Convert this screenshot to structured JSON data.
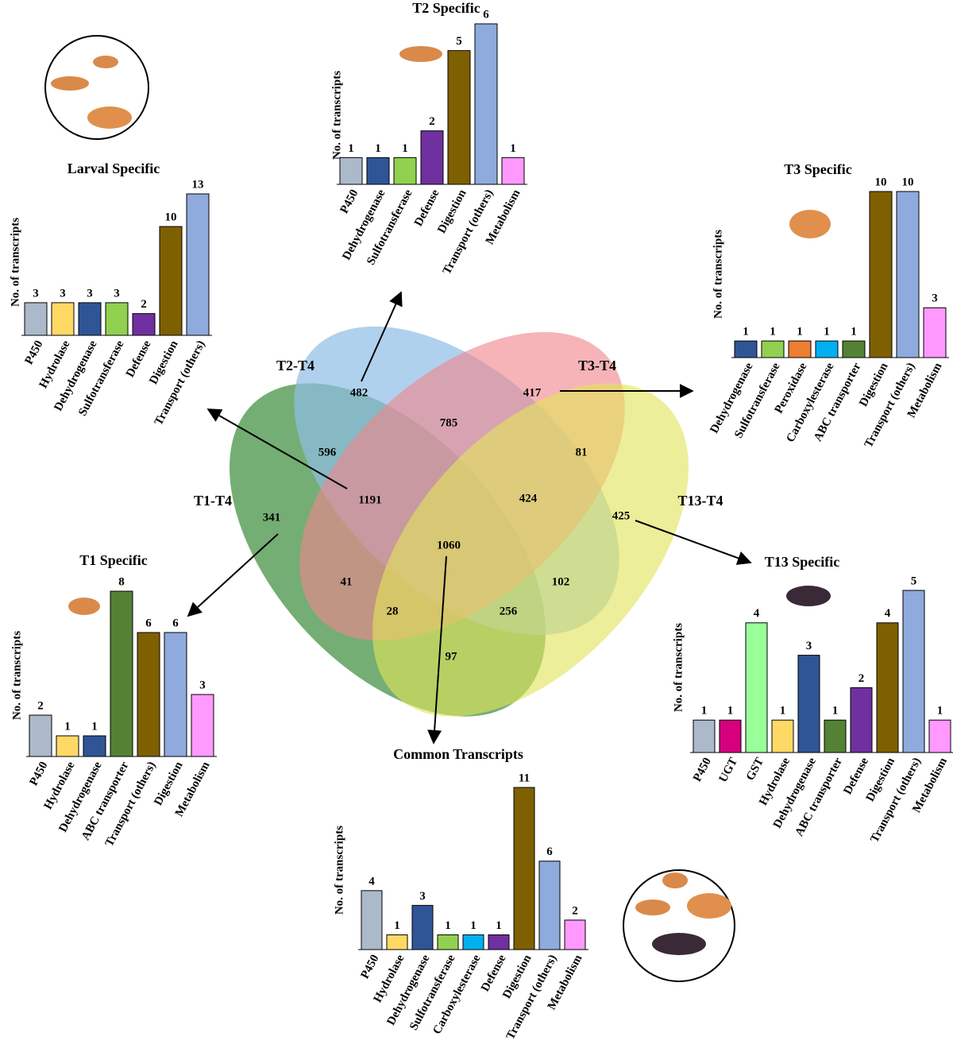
{
  "chart_data": [
    {
      "type": "venn",
      "sets": [
        "T1-T4",
        "T2-T4",
        "T3-T4",
        "T13-T4"
      ],
      "regions": [
        341,
        482,
        417,
        425,
        596,
        785,
        81,
        1191,
        424,
        1060,
        41,
        102,
        28,
        256,
        97
      ]
    },
    {
      "type": "bar",
      "title": "Larval Specific",
      "ylabel": "No. of transcripts",
      "categories": [
        "P450",
        "Hydrolase",
        "Dehydrogenase",
        "Sulfotransferase",
        "Defense",
        "Digestion",
        "Transport (others)"
      ],
      "values": [
        3,
        3,
        3,
        3,
        2,
        10,
        13
      ],
      "colors": [
        "#acb9ca",
        "#ffd966",
        "#2f5597",
        "#92d050",
        "#7030a0",
        "#7f6000",
        "#8faadc"
      ]
    },
    {
      "type": "bar",
      "title": "T2 Specific",
      "ylabel": "No. of transcripts",
      "categories": [
        "P450",
        "Dehydrogenase",
        "Sulfotransferase",
        "Defense",
        "Digestion",
        "Transport (others)",
        "Metabolism"
      ],
      "values": [
        1,
        1,
        1,
        2,
        5,
        6,
        1
      ],
      "colors": [
        "#acb9ca",
        "#2f5597",
        "#92d050",
        "#7030a0",
        "#7f6000",
        "#8faadc",
        "#ff99ff"
      ]
    },
    {
      "type": "bar",
      "title": "T3 Specific",
      "ylabel": "No. of transcripts",
      "categories": [
        "Dehydrogenase",
        "Sulfotransferase",
        "Peroxidase",
        "Carboxylesterase",
        "ABC transporter",
        "Digestion",
        "Transport (others)",
        "Metabolism"
      ],
      "values": [
        1,
        1,
        1,
        1,
        1,
        10,
        10,
        3
      ],
      "colors": [
        "#2f5597",
        "#92d050",
        "#ed7d31",
        "#00b0f0",
        "#548235",
        "#7f6000",
        "#8faadc",
        "#ff99ff"
      ]
    },
    {
      "type": "bar",
      "title": "T1 Specific",
      "ylabel": "No. of transcripts",
      "categories": [
        "P450",
        "Hydrolase",
        "Dehydrogenase",
        "ABC transporter",
        "Transport (others)",
        "Digestion",
        "Metabolism"
      ],
      "values": [
        2,
        1,
        1,
        8,
        6,
        6,
        3
      ],
      "colors": [
        "#acb9ca",
        "#ffd966",
        "#2f5597",
        "#548235",
        "#7f6000",
        "#8faadc",
        "#ff99ff"
      ]
    },
    {
      "type": "bar",
      "title": "T13 Specific",
      "ylabel": "No. of transcripts",
      "categories": [
        "P450",
        "UGT",
        "GST",
        "Hydrolase",
        "Dehydrogenase",
        "ABC transporter",
        "Defense",
        "Digestion",
        "Transport (others)",
        "Metabolism"
      ],
      "values": [
        1,
        1,
        4,
        1,
        3,
        1,
        2,
        4,
        5,
        1
      ],
      "colors": [
        "#acb9ca",
        "#d6007e",
        "#99ff99",
        "#ffd966",
        "#2f5597",
        "#548235",
        "#7030a0",
        "#7f6000",
        "#8faadc",
        "#ff99ff"
      ]
    },
    {
      "type": "bar",
      "title": "Common Transcripts",
      "ylabel": "No. of transcripts",
      "categories": [
        "P450",
        "Hydrolase",
        "Dehydrogenase",
        "Sulfotransferase",
        "Carboxylesterase",
        "Defense",
        "Digestion",
        "Transport (others)",
        "Metabolism"
      ],
      "values": [
        4,
        1,
        3,
        1,
        1,
        1,
        11,
        6,
        2
      ],
      "colors": [
        "#acb9ca",
        "#ffd966",
        "#2f5597",
        "#92d050",
        "#00b0f0",
        "#7030a0",
        "#7f6000",
        "#8faadc",
        "#ff99ff"
      ]
    }
  ]
}
